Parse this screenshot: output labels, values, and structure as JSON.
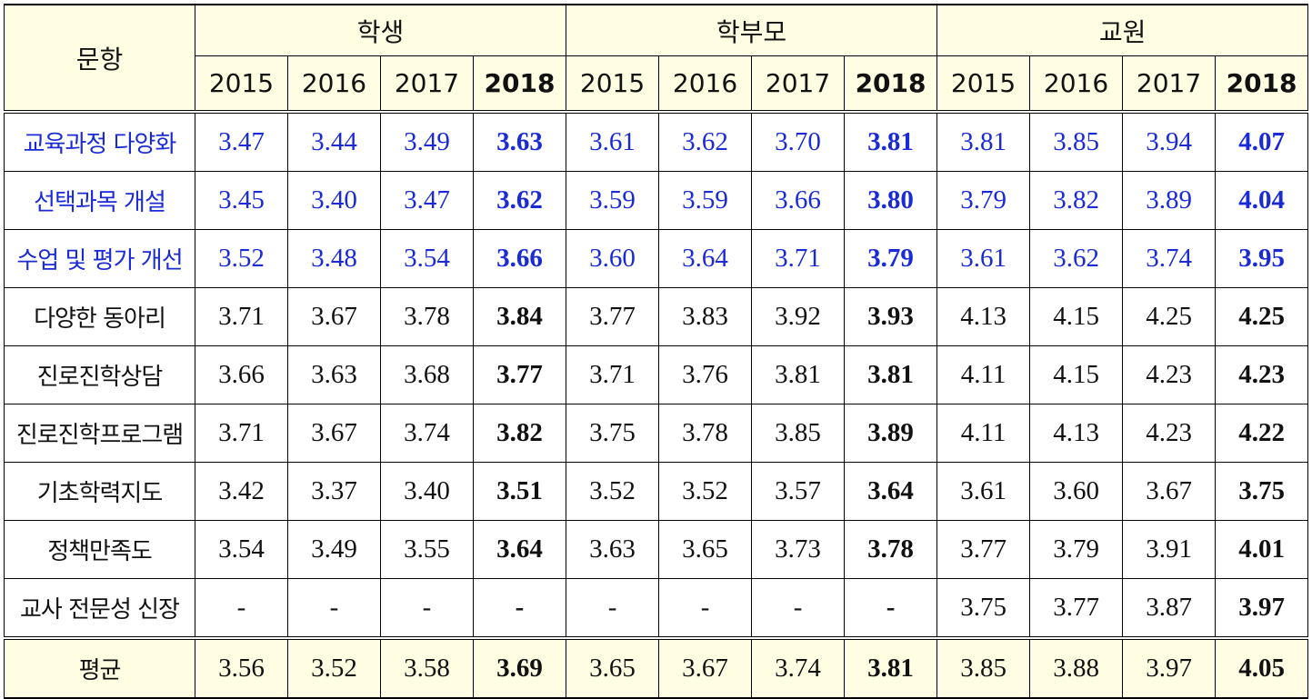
{
  "header": {
    "corner_label": "문항",
    "groups": [
      "학생",
      "학부모",
      "교원"
    ],
    "years": [
      "2015",
      "2016",
      "2017",
      "2018"
    ]
  },
  "rows": [
    {
      "label": "교육과정 다양화",
      "values": [
        "3.47",
        "3.44",
        "3.49",
        "3.63",
        "3.61",
        "3.62",
        "3.70",
        "3.81",
        "3.81",
        "3.85",
        "3.94",
        "4.07"
      ],
      "color": "#1a2ad6"
    },
    {
      "label": "선택과목 개설",
      "values": [
        "3.45",
        "3.40",
        "3.47",
        "3.62",
        "3.59",
        "3.59",
        "3.66",
        "3.80",
        "3.79",
        "3.82",
        "3.89",
        "4.04"
      ],
      "color": "#1a2ad6"
    },
    {
      "label": "수업 및 평가 개선",
      "values": [
        "3.52",
        "3.48",
        "3.54",
        "3.66",
        "3.60",
        "3.64",
        "3.71",
        "3.79",
        "3.61",
        "3.62",
        "3.74",
        "3.95"
      ],
      "color": "#1a2ad6"
    },
    {
      "label": "다양한 동아리",
      "values": [
        "3.71",
        "3.67",
        "3.78",
        "3.84",
        "3.77",
        "3.83",
        "3.92",
        "3.93",
        "4.13",
        "4.15",
        "4.25",
        "4.25"
      ]
    },
    {
      "label": "진로진학상담",
      "values": [
        "3.66",
        "3.63",
        "3.68",
        "3.77",
        "3.71",
        "3.76",
        "3.81",
        "3.81",
        "4.11",
        "4.15",
        "4.23",
        "4.23"
      ]
    },
    {
      "label": "진로진학프로그램",
      "values": [
        "3.71",
        "3.67",
        "3.74",
        "3.82",
        "3.75",
        "3.78",
        "3.85",
        "3.89",
        "4.11",
        "4.13",
        "4.23",
        "4.22"
      ]
    },
    {
      "label": "기초학력지도",
      "values": [
        "3.42",
        "3.37",
        "3.40",
        "3.51",
        "3.52",
        "3.52",
        "3.57",
        "3.64",
        "3.61",
        "3.60",
        "3.67",
        "3.75"
      ]
    },
    {
      "label": "정책만족도",
      "values": [
        "3.54",
        "3.49",
        "3.55",
        "3.64",
        "3.63",
        "3.65",
        "3.73",
        "3.78",
        "3.77",
        "3.79",
        "3.91",
        "4.01"
      ]
    },
    {
      "label": "교사 전문성 신장",
      "values": [
        "-",
        "-",
        "-",
        "-",
        "-",
        "-",
        "-",
        "-",
        "3.75",
        "3.77",
        "3.87",
        "3.97"
      ]
    }
  ],
  "average": {
    "label": "평균",
    "values": [
      "3.56",
      "3.52",
      "3.58",
      "3.69",
      "3.65",
      "3.67",
      "3.74",
      "3.81",
      "3.85",
      "3.88",
      "3.97",
      "4.05"
    ]
  },
  "colors": {
    "header_bg": "#fffde2",
    "highlight_text": "#1a2ad6"
  }
}
